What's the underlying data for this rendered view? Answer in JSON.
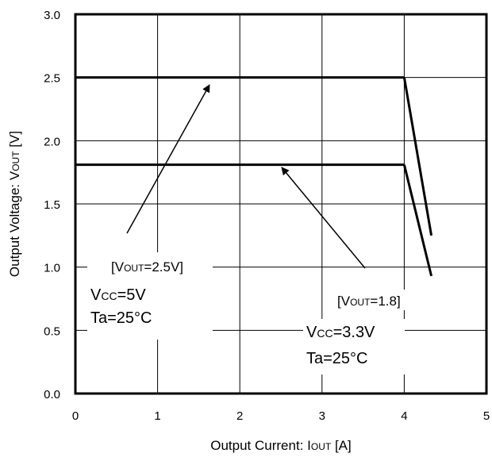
{
  "chart_data": {
    "type": "line",
    "xlabel": {
      "main": "Output Current: I",
      "sub": "OUT",
      "tail": " [A]"
    },
    "ylabel": {
      "main": "Output Voltage: V",
      "sub": "OUT",
      "tail": " [V]"
    },
    "xlim": [
      0,
      5
    ],
    "ylim": [
      0,
      3
    ],
    "x_ticks": [
      "0",
      "1",
      "2",
      "3",
      "4",
      "5"
    ],
    "y_ticks": [
      "0.0",
      "0.5",
      "1.0",
      "1.5",
      "2.0",
      "2.5",
      "3.0"
    ],
    "grid": true,
    "series": [
      {
        "name": "VOUT=2.5V",
        "x": [
          0,
          4.0,
          4.33
        ],
        "y": [
          2.5,
          2.5,
          1.25
        ]
      },
      {
        "name": "VOUT=1.8",
        "x": [
          0,
          4.0,
          4.33
        ],
        "y": [
          1.81,
          1.81,
          0.93
        ]
      }
    ],
    "annotations": {
      "a1_label": {
        "pre": "[V",
        "sub": "OUT",
        "post": "=2.5V]"
      },
      "a1_vcc": {
        "pre": "V",
        "sub": "CC",
        "post": "=5V"
      },
      "a1_ta": "Ta=25°C",
      "a2_label": {
        "pre": "[V",
        "sub": "OUT",
        "post": "=1.8]"
      },
      "a2_vcc": {
        "pre": "V",
        "sub": "CC",
        "post": "=3.3V"
      },
      "a2_ta": "Ta=25°C"
    }
  }
}
